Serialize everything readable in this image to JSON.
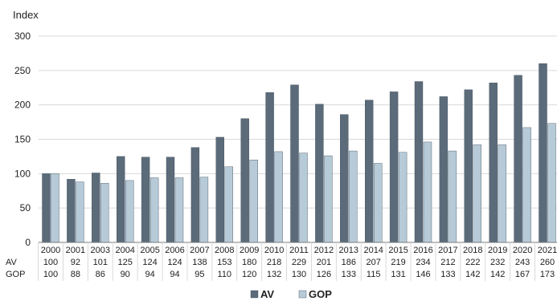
{
  "colors": {
    "av": "#5b6b7a",
    "gop": "#b7cad8",
    "grid": "#d9d9d9",
    "axis": "#7a7a7a",
    "text": "#222222"
  },
  "chart_data": {
    "type": "bar",
    "ylabel": "Index",
    "ylim": [
      0,
      300
    ],
    "yticks": [
      0,
      50,
      100,
      150,
      200,
      250,
      300
    ],
    "grid": true,
    "legend_position": "bottom-center",
    "categories": [
      "2000",
      "2001",
      "2003",
      "2004",
      "2005",
      "2006",
      "2007",
      "2008",
      "2009",
      "2010",
      "2011",
      "2012",
      "2013",
      "2014",
      "2015",
      "2016",
      "2017",
      "2018",
      "2019",
      "2020",
      "2021"
    ],
    "series": [
      {
        "name": "AV",
        "values": [
          100,
          92,
          101,
          125,
          124,
          124,
          138,
          153,
          180,
          218,
          229,
          201,
          186,
          207,
          219,
          234,
          212,
          222,
          232,
          243,
          260
        ]
      },
      {
        "name": "GOP",
        "values": [
          100,
          88,
          86,
          90,
          94,
          94,
          95,
          110,
          120,
          132,
          130,
          126,
          133,
          115,
          131,
          146,
          133,
          142,
          142,
          167,
          173
        ]
      }
    ],
    "table_rows": [
      "AV",
      "GOP"
    ]
  }
}
